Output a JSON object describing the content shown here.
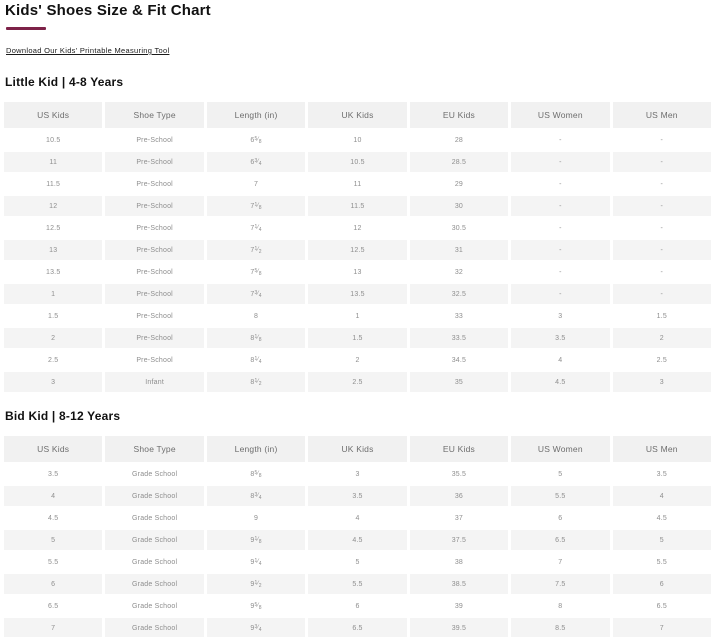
{
  "page": {
    "title": "Kids' Shoes Size & Fit Chart",
    "download_link": "Download Our Kids' Printable Measuring Tool",
    "accent_color": "#7d2248"
  },
  "sections": [
    {
      "id": "little_kid",
      "heading": "Little Kid | 4-8 Years",
      "columns": [
        "US Kids",
        "Shoe Type",
        "Length (in)",
        "UK Kids",
        "EU Kids",
        "US Women",
        "US Men"
      ],
      "rows": [
        [
          "10.5",
          "Pre-School",
          "6 5/8",
          "10",
          "28",
          "-",
          "-"
        ],
        [
          "11",
          "Pre-School",
          "6 3/4",
          "10.5",
          "28.5",
          "-",
          "-"
        ],
        [
          "11.5",
          "Pre-School",
          "7",
          "11",
          "29",
          "-",
          "-"
        ],
        [
          "12",
          "Pre-School",
          "7 1/8",
          "11.5",
          "30",
          "-",
          "-"
        ],
        [
          "12.5",
          "Pre-School",
          "7 1/4",
          "12",
          "30.5",
          "-",
          "-"
        ],
        [
          "13",
          "Pre-School",
          "7 1/2",
          "12.5",
          "31",
          "-",
          "-"
        ],
        [
          "13.5",
          "Pre-School",
          "7 5/8",
          "13",
          "32",
          "-",
          "-"
        ],
        [
          "1",
          "Pre-School",
          "7 3/4",
          "13.5",
          "32.5",
          "-",
          "-"
        ],
        [
          "1.5",
          "Pre-School",
          "8",
          "1",
          "33",
          "3",
          "1.5"
        ],
        [
          "2",
          "Pre-School",
          "8 1/8",
          "1.5",
          "33.5",
          "3.5",
          "2"
        ],
        [
          "2.5",
          "Pre-School",
          "8 1/4",
          "2",
          "34.5",
          "4",
          "2.5"
        ],
        [
          "3",
          "Infant",
          "8 1/2",
          "2.5",
          "35",
          "4.5",
          "3"
        ]
      ]
    },
    {
      "id": "big_kid",
      "heading": "Bid Kid | 8-12 Years",
      "columns": [
        "US Kids",
        "Shoe Type",
        "Length (in)",
        "UK Kids",
        "EU Kids",
        "US Women",
        "US Men"
      ],
      "rows": [
        [
          "3.5",
          "Grade School",
          "8 5/8",
          "3",
          "35.5",
          "5",
          "3.5"
        ],
        [
          "4",
          "Grade School",
          "8 3/4",
          "3.5",
          "36",
          "5.5",
          "4"
        ],
        [
          "4.5",
          "Grade School",
          "9",
          "4",
          "37",
          "6",
          "4.5"
        ],
        [
          "5",
          "Grade School",
          "9 1/8",
          "4.5",
          "37.5",
          "6.5",
          "5"
        ],
        [
          "5.5",
          "Grade School",
          "9 1/4",
          "5",
          "38",
          "7",
          "5.5"
        ],
        [
          "6",
          "Grade School",
          "9 1/2",
          "5.5",
          "38.5",
          "7.5",
          "6"
        ],
        [
          "6.5",
          "Grade School",
          "9 5/8",
          "6",
          "39",
          "8",
          "6.5"
        ],
        [
          "7",
          "Grade School",
          "9 3/4",
          "6.5",
          "39.5",
          "8.5",
          "7"
        ]
      ]
    }
  ]
}
